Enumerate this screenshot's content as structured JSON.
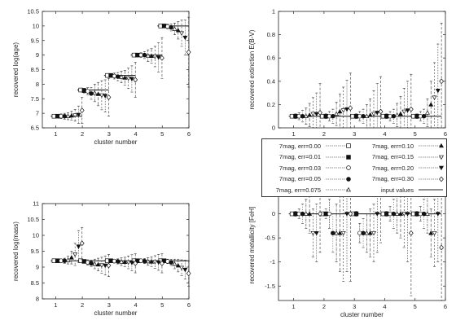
{
  "chart_data": [
    {
      "type": "scatter",
      "xlabel": "cluster number",
      "ylabel": "recovered log(age)",
      "xlim": [
        0.5,
        6
      ],
      "ylim": [
        6.5,
        10.5
      ],
      "xticks": [
        1,
        2,
        3,
        4,
        5,
        6
      ],
      "yticks": [
        6.5,
        7,
        7.5,
        8,
        8.5,
        9,
        9.5,
        10,
        10.5
      ],
      "input_values": [
        6.9,
        7.8,
        8.3,
        9.0,
        10.0
      ],
      "series": [
        {
          "name": "7mag, err=0.00",
          "values": [
            6.9,
            7.8,
            8.3,
            9.0,
            10.0
          ],
          "err": [
            0.05,
            0.05,
            0.05,
            0.05,
            0.05
          ]
        },
        {
          "name": "7mag, err=0.01",
          "values": [
            6.9,
            7.78,
            8.3,
            9.0,
            10.0
          ],
          "err": [
            0.06,
            0.08,
            0.06,
            0.06,
            0.05
          ]
        },
        {
          "name": "7mag, err=0.03",
          "values": [
            6.9,
            7.76,
            8.28,
            9.0,
            9.98
          ],
          "err": [
            0.08,
            0.12,
            0.1,
            0.08,
            0.08
          ]
        },
        {
          "name": "7mag, err=0.05",
          "values": [
            6.9,
            7.68,
            8.26,
            9.0,
            9.95
          ],
          "err": [
            0.1,
            0.2,
            0.14,
            0.12,
            0.12
          ]
        },
        {
          "name": "7mag, err=0.075",
          "values": [
            6.9,
            7.7,
            8.25,
            8.98,
            9.9
          ],
          "err": [
            0.12,
            0.3,
            0.2,
            0.2,
            0.2
          ]
        },
        {
          "name": "7mag, err=0.10",
          "values": [
            6.92,
            7.66,
            8.22,
            8.97,
            9.85
          ],
          "err": [
            0.15,
            0.4,
            0.25,
            0.25,
            0.3
          ]
        },
        {
          "name": "7mag, err=0.15",
          "values": [
            6.93,
            7.62,
            8.2,
            8.95,
            9.75
          ],
          "err": [
            0.2,
            0.5,
            0.35,
            0.35,
            0.45
          ]
        },
        {
          "name": "7mag, err=0.20",
          "values": [
            6.95,
            7.6,
            8.18,
            8.92,
            9.6
          ],
          "err": [
            0.3,
            0.55,
            0.45,
            0.5,
            0.6
          ]
        },
        {
          "name": "7mag, err=0.30",
          "values": [
            7.1,
            7.55,
            8.15,
            8.9,
            9.1
          ],
          "err": [
            0.45,
            0.65,
            0.6,
            0.7,
            1.2
          ]
        }
      ]
    },
    {
      "type": "scatter",
      "xlabel": "cluster number",
      "ylabel": "recovered extinction E(B-V)",
      "xlim": [
        0.5,
        6
      ],
      "ylim": [
        0,
        1
      ],
      "xticks": [
        1,
        2,
        3,
        4,
        5,
        6
      ],
      "yticks": [
        0,
        0.2,
        0.4,
        0.6,
        0.8,
        1
      ],
      "input_values": [
        0.1,
        0.1,
        0.1,
        0.1,
        0.1
      ],
      "series": [
        {
          "name": "7mag, err=0.00",
          "values": [
            0.1,
            0.1,
            0.1,
            0.1,
            0.1
          ],
          "err": [
            0.01,
            0.01,
            0.01,
            0.01,
            0.01
          ]
        },
        {
          "name": "7mag, err=0.01",
          "values": [
            0.1,
            0.1,
            0.1,
            0.1,
            0.1
          ],
          "err": [
            0.02,
            0.02,
            0.02,
            0.02,
            0.02
          ]
        },
        {
          "name": "7mag, err=0.03",
          "values": [
            0.1,
            0.1,
            0.1,
            0.1,
            0.1
          ],
          "err": [
            0.03,
            0.04,
            0.04,
            0.04,
            0.04
          ]
        },
        {
          "name": "7mag, err=0.05",
          "values": [
            0.1,
            0.1,
            0.1,
            0.1,
            0.1
          ],
          "err": [
            0.05,
            0.06,
            0.06,
            0.06,
            0.06
          ]
        },
        {
          "name": "7mag, err=0.075",
          "values": [
            0.1,
            0.12,
            0.1,
            0.11,
            0.13
          ],
          "err": [
            0.07,
            0.1,
            0.1,
            0.1,
            0.12
          ]
        },
        {
          "name": "7mag, err=0.10",
          "values": [
            0.11,
            0.14,
            0.11,
            0.12,
            0.2
          ],
          "err": [
            0.1,
            0.15,
            0.14,
            0.15,
            0.2
          ]
        },
        {
          "name": "7mag, err=0.15",
          "values": [
            0.12,
            0.15,
            0.12,
            0.14,
            0.26
          ],
          "err": [
            0.14,
            0.2,
            0.2,
            0.2,
            0.3
          ]
        },
        {
          "name": "7mag, err=0.20",
          "values": [
            0.12,
            0.16,
            0.13,
            0.15,
            0.32
          ],
          "err": [
            0.18,
            0.25,
            0.25,
            0.25,
            0.4
          ]
        },
        {
          "name": "7mag, err=0.30",
          "values": [
            0.13,
            0.17,
            0.14,
            0.16,
            0.4
          ],
          "err": [
            0.25,
            0.3,
            0.3,
            0.3,
            0.5
          ]
        }
      ]
    },
    {
      "type": "scatter",
      "xlabel": "cluster number",
      "ylabel": "recovered log(mass)",
      "xlim": [
        0.5,
        6
      ],
      "ylim": [
        8,
        11
      ],
      "xticks": [
        1,
        2,
        3,
        4,
        5,
        6
      ],
      "yticks": [
        8,
        8.5,
        9,
        9.5,
        10,
        10.5,
        11
      ],
      "input_values": [
        9.2,
        9.2,
        9.2,
        9.2,
        9.2
      ],
      "series": [
        {
          "name": "7mag, err=0.00",
          "values": [
            9.2,
            9.2,
            9.2,
            9.2,
            9.2
          ],
          "err": [
            0.03,
            0.03,
            0.03,
            0.03,
            0.03
          ]
        },
        {
          "name": "7mag, err=0.01",
          "values": [
            9.2,
            9.18,
            9.2,
            9.2,
            9.2
          ],
          "err": [
            0.04,
            0.05,
            0.04,
            0.04,
            0.04
          ]
        },
        {
          "name": "7mag, err=0.03",
          "values": [
            9.2,
            9.15,
            9.19,
            9.2,
            9.18
          ],
          "err": [
            0.06,
            0.08,
            0.06,
            0.06,
            0.07
          ]
        },
        {
          "name": "7mag, err=0.05",
          "values": [
            9.2,
            9.12,
            9.18,
            9.19,
            9.15
          ],
          "err": [
            0.08,
            0.1,
            0.08,
            0.08,
            0.1
          ]
        },
        {
          "name": "7mag, err=0.075",
          "values": [
            9.22,
            9.1,
            9.17,
            9.18,
            9.1
          ],
          "err": [
            0.12,
            0.15,
            0.12,
            0.12,
            0.15
          ]
        },
        {
          "name": "7mag, err=0.10",
          "values": [
            9.3,
            9.08,
            9.16,
            9.17,
            9.05
          ],
          "err": [
            0.2,
            0.2,
            0.15,
            0.15,
            0.2
          ]
        },
        {
          "name": "7mag, err=0.15",
          "values": [
            9.4,
            9.06,
            9.15,
            9.16,
            8.98
          ],
          "err": [
            0.35,
            0.25,
            0.2,
            0.2,
            0.25
          ]
        },
        {
          "name": "7mag, err=0.20",
          "values": [
            9.65,
            9.05,
            9.14,
            9.15,
            8.92
          ],
          "err": [
            0.5,
            0.3,
            0.25,
            0.25,
            0.3
          ]
        },
        {
          "name": "7mag, err=0.30",
          "values": [
            9.75,
            9.05,
            9.12,
            9.12,
            8.8
          ],
          "err": [
            0.5,
            0.35,
            0.3,
            0.3,
            0.4
          ]
        }
      ]
    },
    {
      "type": "scatter",
      "xlabel": "cluster number",
      "ylabel": "recovered metallicity [FeH]",
      "xlim": [
        0.5,
        6
      ],
      "ylim": [
        -1.8,
        0.5
      ],
      "xticks": [
        1,
        2,
        3,
        4,
        5,
        6
      ],
      "yticks": [
        -1.5,
        -1,
        -0.5,
        0,
        0.5
      ],
      "yticklabels": [
        "-1.5",
        "-1",
        "-0.5",
        "0",
        "0.5"
      ],
      "input_values": [
        0,
        0,
        0,
        0,
        0
      ],
      "series": [
        {
          "name": "7mag, err=0.00",
          "values": [
            0,
            0,
            0,
            0,
            0
          ],
          "err": [
            0.02,
            0.02,
            0.02,
            0.02,
            0.02
          ]
        },
        {
          "name": "7mag, err=0.01",
          "values": [
            0,
            0,
            0,
            0,
            0
          ],
          "err": [
            0.05,
            0.1,
            0.05,
            0.05,
            0.05
          ]
        },
        {
          "name": "7mag, err=0.03",
          "values": [
            0,
            0,
            -0.4,
            0,
            0
          ],
          "err": [
            0.1,
            0.3,
            0.2,
            0.15,
            0.15
          ]
        },
        {
          "name": "7mag, err=0.05",
          "values": [
            0,
            -0.4,
            -0.4,
            0,
            0
          ],
          "err": [
            0.2,
            0.4,
            0.3,
            0.3,
            0.3
          ]
        },
        {
          "name": "7mag, err=0.075",
          "values": [
            0,
            -0.4,
            -0.4,
            0,
            0
          ],
          "err": [
            0.3,
            0.6,
            0.4,
            0.4,
            0.4
          ]
        },
        {
          "name": "7mag, err=0.10",
          "values": [
            0,
            -0.4,
            -0.4,
            0,
            -0.4
          ],
          "err": [
            0.4,
            0.8,
            0.5,
            0.5,
            0.5
          ]
        },
        {
          "name": "7mag, err=0.15",
          "values": [
            -0.4,
            -0.4,
            -0.4,
            0,
            -0.4
          ],
          "err": [
            0.5,
            1.0,
            0.6,
            0.7,
            0.7
          ]
        },
        {
          "name": "7mag, err=0.20",
          "values": [
            -0.4,
            0,
            0,
            0,
            0
          ],
          "err": [
            0.6,
            1.2,
            0.8,
            1.0,
            1.0
          ]
        },
        {
          "name": "7mag, err=0.30",
          "values": [
            0,
            0,
            0.4,
            -0.4,
            -0.7
          ],
          "err": [
            0.8,
            1.4,
            1.0,
            1.3,
            1.3
          ]
        }
      ]
    }
  ],
  "legend": {
    "entries": [
      "7mag, err=0.00",
      "7mag, err=0.10",
      "7mag, err=0.01",
      "7mag, err=0.15",
      "7mag, err=0.03",
      "7mag, err=0.20",
      "7mag, err=0.05",
      "7mag, err=0.30",
      "7mag, err=0.075",
      "input values"
    ],
    "markers": [
      "open-square",
      "filled-triangle-up",
      "filled-square",
      "open-triangle-down",
      "open-circle",
      "filled-triangle-down",
      "filled-circle",
      "open-diamond",
      "open-triangle-up",
      "line"
    ]
  }
}
